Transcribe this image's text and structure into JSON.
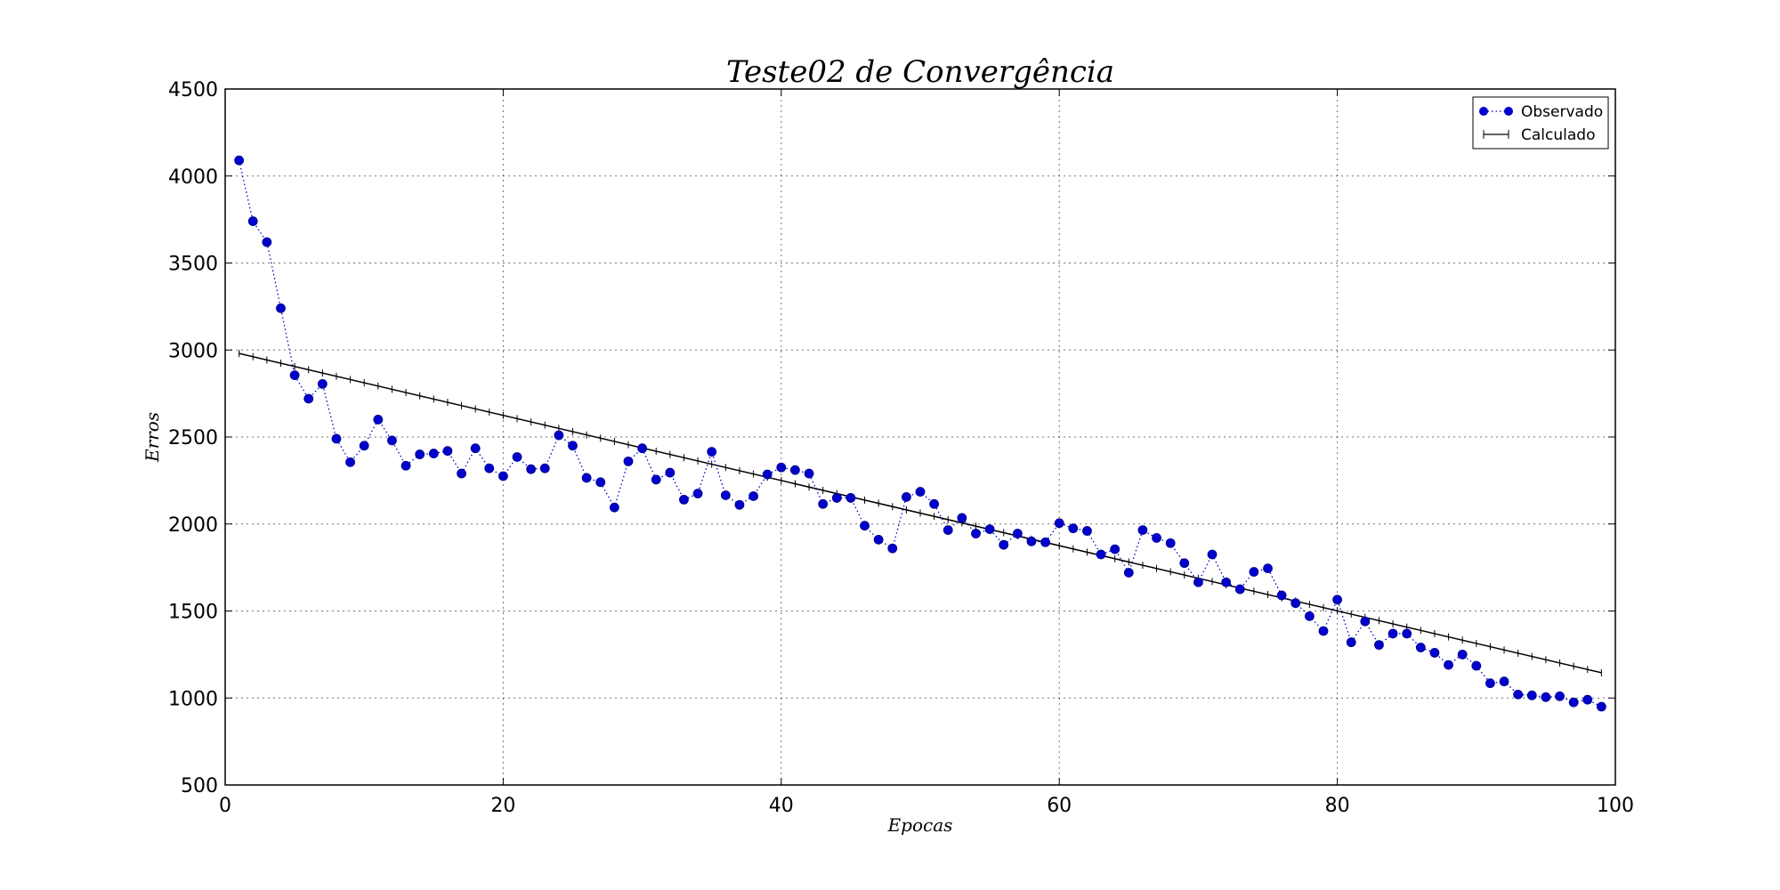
{
  "chart_data": {
    "type": "line",
    "title": "Teste02 de Convergência",
    "xlabel": "Epocas",
    "ylabel": "Erros",
    "xlim": [
      0,
      100
    ],
    "ylim": [
      500,
      4500
    ],
    "xticks": [
      0,
      20,
      40,
      60,
      80,
      100
    ],
    "yticks": [
      500,
      1000,
      1500,
      2000,
      2500,
      3000,
      3500,
      4000,
      4500
    ],
    "grid": true,
    "legend_position": "top-right",
    "series": [
      {
        "name": "Observado",
        "color": "#0000cc",
        "style": "dotted line with circle markers",
        "x": [
          1,
          2,
          3,
          4,
          5,
          6,
          7,
          8,
          9,
          10,
          11,
          12,
          13,
          14,
          15,
          16,
          17,
          18,
          19,
          20,
          21,
          22,
          23,
          24,
          25,
          26,
          27,
          28,
          29,
          30,
          31,
          32,
          33,
          34,
          35,
          36,
          37,
          38,
          39,
          40,
          41,
          42,
          43,
          44,
          45,
          46,
          47,
          48,
          49,
          50,
          51,
          52,
          53,
          54,
          55,
          56,
          57,
          58,
          59,
          60,
          61,
          62,
          63,
          64,
          65,
          66,
          67,
          68,
          69,
          70,
          71,
          72,
          73,
          74,
          75,
          76,
          77,
          78,
          79,
          80,
          81,
          82,
          83,
          84,
          85,
          86,
          87,
          88,
          89,
          90,
          91,
          92,
          93,
          94,
          95,
          96,
          97,
          98,
          99
        ],
        "y": [
          4090,
          3740,
          3620,
          3240,
          2855,
          2720,
          2805,
          2490,
          2355,
          2450,
          2600,
          2480,
          2335,
          2400,
          2405,
          2420,
          2290,
          2435,
          2320,
          2275,
          2385,
          2315,
          2320,
          2510,
          2450,
          2265,
          2240,
          2095,
          2360,
          2435,
          2255,
          2295,
          2140,
          2175,
          2415,
          2165,
          2110,
          2160,
          2285,
          2325,
          2310,
          2290,
          2115,
          2150,
          2150,
          1990,
          1910,
          1860,
          2155,
          2185,
          2115,
          1965,
          2035,
          1945,
          1970,
          1880,
          1945,
          1900,
          1895,
          2005,
          1975,
          1960,
          1825,
          1855,
          1720,
          1965,
          1920,
          1890,
          1775,
          1665,
          1825,
          1665,
          1625,
          1725,
          1745,
          1590,
          1545,
          1470,
          1385,
          1565,
          1320,
          1440,
          1305,
          1370,
          1370,
          1290,
          1260,
          1190,
          1250,
          1185,
          1085,
          1095,
          1020,
          1015,
          1005,
          1010,
          975,
          990,
          950
        ]
      },
      {
        "name": "Calculado",
        "color": "#000000",
        "style": "solid line with plus markers",
        "x_start": 1,
        "x_end": 99,
        "y_start": 2980,
        "y_end": 1145
      }
    ]
  }
}
